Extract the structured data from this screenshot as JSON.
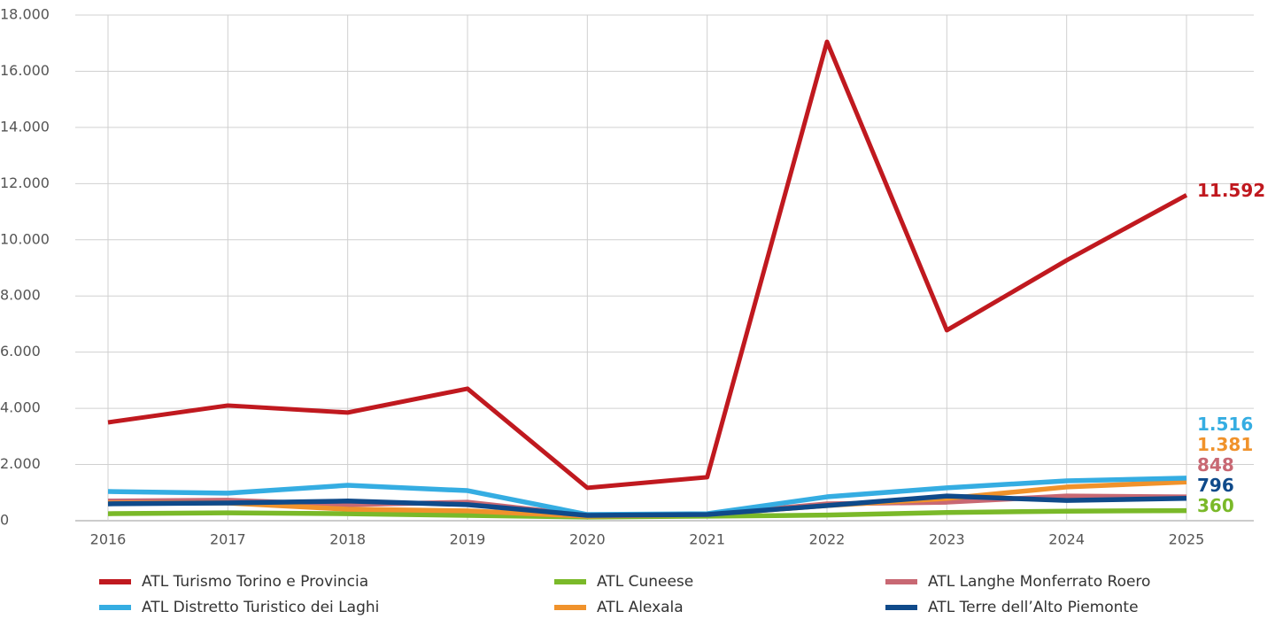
{
  "chart_data": {
    "type": "line",
    "x": [
      2016,
      2017,
      2018,
      2019,
      2020,
      2021,
      2022,
      2023,
      2024,
      2025
    ],
    "xlim": [
      2016,
      2025
    ],
    "xticks": [
      2016,
      2017,
      2018,
      2019,
      2020,
      2021,
      2022,
      2023,
      2024,
      2025
    ],
    "ylim": [
      0,
      18000
    ],
    "yticks": [
      0,
      {
        "value": 2000,
        "label": "2.000"
      },
      {
        "value": 4000,
        "label": "4.000"
      },
      {
        "value": 6000,
        "label": "6.000"
      },
      {
        "value": 8000,
        "label": "8.000"
      },
      {
        "value": 10000,
        "label": "10.000"
      },
      {
        "value": 12000,
        "label": "12.000"
      },
      {
        "value": 14000,
        "label": "14.000"
      },
      {
        "value": 16000,
        "label": "16.000"
      },
      {
        "value": 18000,
        "label": "18.000"
      }
    ],
    "grid": true,
    "legend": "bottom",
    "series": [
      {
        "name": "ATL Turismo Torino e Provincia",
        "color": "#c0191f",
        "values": [
          3500,
          4100,
          3850,
          4700,
          1170,
          1550,
          17050,
          6780,
          9270,
          11592
        ],
        "value_labels": [
          null,
          null,
          null,
          null,
          null,
          null,
          null,
          null,
          null,
          "11.592"
        ]
      },
      {
        "name": "ATL Distretto Turistico dei Laghi",
        "color": "#35ade2",
        "values": [
          1040,
          980,
          1260,
          1070,
          220,
          250,
          850,
          1170,
          1420,
          1516
        ],
        "value_labels": [
          null,
          null,
          null,
          null,
          null,
          null,
          null,
          null,
          null,
          "1.516"
        ]
      },
      {
        "name": "ATL Cuneese",
        "color": "#7ab929",
        "values": [
          250,
          280,
          250,
          190,
          130,
          160,
          200,
          290,
          340,
          360
        ]
      },
      {
        "name": "ATL Alexala",
        "color": "#f0922b",
        "values": [
          630,
          630,
          410,
          350,
          160,
          220,
          540,
          790,
          1200,
          1381
        ],
        "value_labels": [
          null,
          null,
          null,
          null,
          null,
          null,
          null,
          null,
          null,
          "1.381"
        ]
      },
      {
        "name": "ATL Langhe Monferrato Roero",
        "color": "#c86873",
        "values": [
          700,
          730,
          570,
          660,
          190,
          220,
          600,
          660,
          880,
          848
        ]
      },
      {
        "name": "ATL Terre dell’Alto Piemonte",
        "color": "#0f4a8a",
        "values": [
          600,
          630,
          700,
          570,
          190,
          220,
          540,
          880,
          720,
          796
        ]
      }
    ]
  }
}
